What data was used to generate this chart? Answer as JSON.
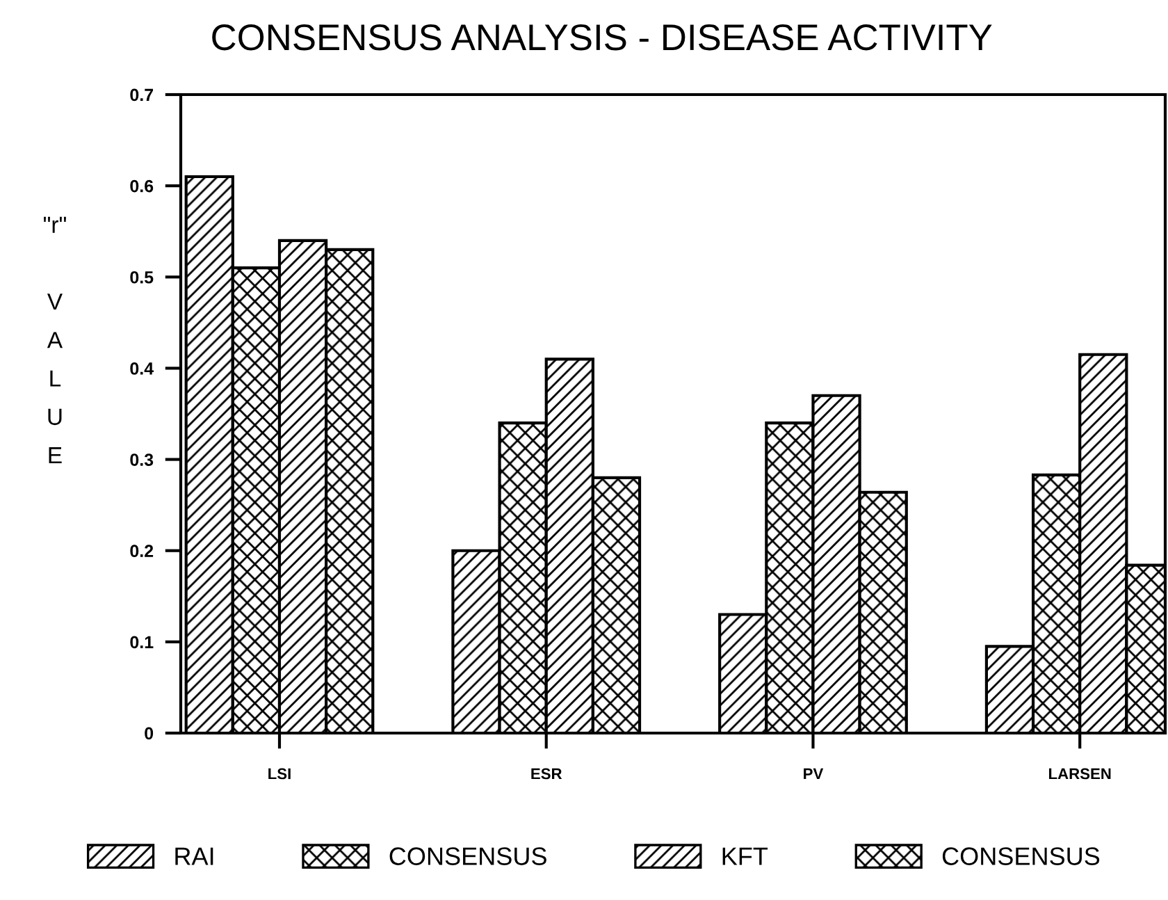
{
  "chart_data": {
    "type": "bar",
    "title": "CONSENSUS ANALYSIS - DISEASE ACTIVITY",
    "ylabel": "\"r\"\n\nV\nA\nL\nU\nE",
    "categories": [
      "LSI",
      "ESR",
      "PV",
      "LARSEN"
    ],
    "series": [
      {
        "name": "RAI",
        "color": "#000000",
        "values": [
          0.61,
          0.2,
          0.13,
          0.095
        ]
      },
      {
        "name": "CONSENSUS",
        "color": "#000000",
        "values": [
          0.51,
          0.34,
          0.34,
          0.283
        ]
      },
      {
        "name": "KFT",
        "color": "#000000",
        "values": [
          0.54,
          0.41,
          0.37,
          0.415
        ]
      },
      {
        "name": "CONSENSUS",
        "color": "#000000",
        "values": [
          0.53,
          0.28,
          0.264,
          0.184
        ]
      }
    ],
    "ylim": [
      0,
      0.7
    ],
    "yticks": [
      0,
      0.1,
      0.2,
      0.3,
      0.4,
      0.5,
      0.6,
      0.7
    ],
    "grid": false,
    "legend": "bottom"
  }
}
